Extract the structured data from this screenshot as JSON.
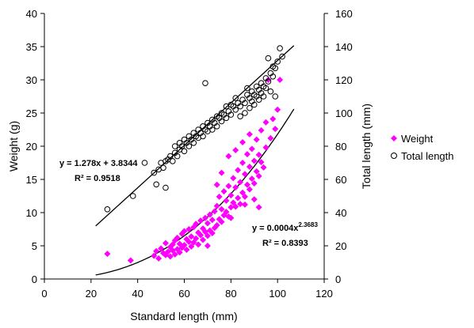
{
  "colors": {
    "weight": "#ff00ff",
    "total_length": "#000000",
    "axis": "#000000",
    "background": "#ffffff"
  },
  "chart_data": {
    "type": "scatter",
    "xlabel": "Standard length (mm)",
    "ylabel": "Weight (g)",
    "y2label": "Total length (mm)",
    "xlim": [
      0,
      120
    ],
    "ylim": [
      0,
      40
    ],
    "y2lim": [
      0,
      160
    ],
    "x_ticks": [
      "0",
      "20",
      "40",
      "60",
      "80",
      "100",
      "120"
    ],
    "y_ticks": [
      "0",
      "5",
      "10",
      "15",
      "20",
      "25",
      "30",
      "35",
      "40"
    ],
    "y2_ticks": [
      "0",
      "20",
      "40",
      "60",
      "80",
      "100",
      "120",
      "140",
      "160"
    ],
    "grid": false,
    "legend_position": "right",
    "series": [
      {
        "name": "Weight",
        "axis": "left",
        "marker": "diamond",
        "color": "#ff00ff",
        "points": [
          [
            27,
            3.8
          ],
          [
            37,
            2.8
          ],
          [
            47,
            3.5
          ],
          [
            48,
            4.2
          ],
          [
            49,
            3.1
          ],
          [
            50,
            4.6
          ],
          [
            51,
            3.9
          ],
          [
            52,
            5.4
          ],
          [
            52,
            3.6
          ],
          [
            53,
            4.1
          ],
          [
            54,
            4.8
          ],
          [
            54,
            3.4
          ],
          [
            55,
            5.2
          ],
          [
            55,
            4.3
          ],
          [
            56,
            3.7
          ],
          [
            56,
            5.8
          ],
          [
            57,
            4.5
          ],
          [
            57,
            6.2
          ],
          [
            58,
            4.0
          ],
          [
            58,
            5.3
          ],
          [
            59,
            6.8
          ],
          [
            59,
            4.7
          ],
          [
            60,
            5.1
          ],
          [
            60,
            7.2
          ],
          [
            61,
            4.4
          ],
          [
            61,
            6.0
          ],
          [
            62,
            5.6
          ],
          [
            62,
            7.5
          ],
          [
            63,
            4.9
          ],
          [
            63,
            6.4
          ],
          [
            64,
            5.5
          ],
          [
            64,
            7.8
          ],
          [
            65,
            6.1
          ],
          [
            65,
            8.3
          ],
          [
            66,
            5.2
          ],
          [
            66,
            7.0
          ],
          [
            67,
            6.6
          ],
          [
            67,
            8.8
          ],
          [
            68,
            5.9
          ],
          [
            68,
            7.6
          ],
          [
            69,
            7.1
          ],
          [
            69,
            9.2
          ],
          [
            70,
            6.5
          ],
          [
            70,
            8.4
          ],
          [
            71,
            7.3
          ],
          [
            71,
            9.7
          ],
          [
            72,
            6.9
          ],
          [
            72,
            8.9
          ],
          [
            73,
            7.7
          ],
          [
            73,
            10.2
          ],
          [
            74,
            8.1
          ],
          [
            74,
            11.0
          ],
          [
            75,
            9.0
          ],
          [
            75,
            12.4
          ],
          [
            76,
            8.6
          ],
          [
            76,
            10.5
          ],
          [
            77,
            9.6
          ],
          [
            77,
            13.2
          ],
          [
            78,
            10.1
          ],
          [
            78,
            11.8
          ],
          [
            79,
            9.4
          ],
          [
            79,
            14.0
          ],
          [
            80,
            10.8
          ],
          [
            80,
            12.6
          ],
          [
            81,
            11.5
          ],
          [
            81,
            15.2
          ],
          [
            82,
            10.9
          ],
          [
            82,
            13.8
          ],
          [
            83,
            12.2
          ],
          [
            83,
            16.4
          ],
          [
            84,
            11.3
          ],
          [
            84,
            14.6
          ],
          [
            85,
            13.0
          ],
          [
            85,
            17.5
          ],
          [
            86,
            12.4
          ],
          [
            86,
            15.8
          ],
          [
            87,
            14.2
          ],
          [
            87,
            18.8
          ],
          [
            88,
            13.5
          ],
          [
            88,
            16.9
          ],
          [
            89,
            15.1
          ],
          [
            89,
            19.6
          ],
          [
            90,
            14.4
          ],
          [
            90,
            17.8
          ],
          [
            91,
            16.2
          ],
          [
            91,
            21.0
          ],
          [
            92,
            15.5
          ],
          [
            92,
            18.7
          ],
          [
            93,
            17.6
          ],
          [
            93,
            22.4
          ],
          [
            94,
            16.8
          ],
          [
            95,
            19.8
          ],
          [
            95,
            23.6
          ],
          [
            96,
            30.0
          ],
          [
            97,
            21.2
          ],
          [
            98,
            24.1
          ],
          [
            99,
            22.6
          ],
          [
            100,
            25.5
          ],
          [
            101,
            30.0
          ],
          [
            79,
            18.5
          ],
          [
            82,
            19.4
          ],
          [
            76,
            16.0
          ],
          [
            74,
            14.2
          ],
          [
            85,
            20.6
          ],
          [
            88,
            21.8
          ],
          [
            90,
            12.0
          ],
          [
            92,
            10.8
          ],
          [
            86,
            11.2
          ],
          [
            80,
            9.2
          ],
          [
            70,
            5.0
          ]
        ]
      },
      {
        "name": "Total length",
        "axis": "right",
        "marker": "circle",
        "color": "#000000",
        "points": [
          [
            27,
            42
          ],
          [
            38,
            50
          ],
          [
            43,
            70
          ],
          [
            47,
            64
          ],
          [
            48,
            57
          ],
          [
            49,
            66
          ],
          [
            50,
            70
          ],
          [
            51,
            67
          ],
          [
            52,
            55
          ],
          [
            52,
            71
          ],
          [
            53,
            72
          ],
          [
            54,
            74
          ],
          [
            55,
            71
          ],
          [
            56,
            76
          ],
          [
            57,
            74
          ],
          [
            58,
            78
          ],
          [
            59,
            80
          ],
          [
            60,
            77
          ],
          [
            61,
            82
          ],
          [
            62,
            80
          ],
          [
            63,
            84
          ],
          [
            64,
            82
          ],
          [
            65,
            86
          ],
          [
            66,
            85
          ],
          [
            67,
            88
          ],
          [
            68,
            86
          ],
          [
            69,
            90
          ],
          [
            69,
            118
          ],
          [
            70,
            89
          ],
          [
            71,
            92
          ],
          [
            72,
            90
          ],
          [
            73,
            94
          ],
          [
            74,
            92
          ],
          [
            75,
            97
          ],
          [
            76,
            95
          ],
          [
            77,
            99
          ],
          [
            78,
            97
          ],
          [
            79,
            101
          ],
          [
            80,
            99
          ],
          [
            81,
            104
          ],
          [
            82,
            102
          ],
          [
            83,
            106
          ],
          [
            84,
            104
          ],
          [
            85,
            108
          ],
          [
            86,
            106
          ],
          [
            87,
            111
          ],
          [
            88,
            109
          ],
          [
            89,
            113
          ],
          [
            90,
            111
          ],
          [
            91,
            116
          ],
          [
            92,
            114
          ],
          [
            93,
            118
          ],
          [
            94,
            116
          ],
          [
            95,
            121
          ],
          [
            96,
            119
          ],
          [
            97,
            124
          ],
          [
            98,
            122
          ],
          [
            99,
            127
          ],
          [
            100,
            131
          ],
          [
            101,
            139
          ],
          [
            102,
            134
          ],
          [
            96,
            133
          ],
          [
            98,
            128
          ],
          [
            87,
            115
          ],
          [
            89,
            107
          ],
          [
            91,
            110
          ],
          [
            93,
            112
          ],
          [
            95,
            115
          ],
          [
            97,
            113
          ],
          [
            99,
            110
          ],
          [
            84,
            98
          ],
          [
            86,
            100
          ],
          [
            88,
            103
          ],
          [
            90,
            105
          ],
          [
            92,
            108
          ],
          [
            94,
            110
          ],
          [
            82,
            109
          ],
          [
            80,
            105
          ],
          [
            78,
            104
          ],
          [
            76,
            100
          ],
          [
            74,
            98
          ],
          [
            72,
            96
          ],
          [
            70,
            94
          ],
          [
            68,
            92
          ],
          [
            66,
            90
          ],
          [
            64,
            88
          ],
          [
            62,
            86
          ],
          [
            60,
            84
          ],
          [
            58,
            82
          ],
          [
            56,
            80
          ]
        ]
      }
    ],
    "trendlines": [
      {
        "series": "Total length",
        "type": "linear",
        "slope": 1.278,
        "intercept": 3.8344,
        "x_range": [
          22,
          107
        ],
        "equation": "y = 1.278x + 3.8344",
        "r2_text": "R² = 0.9518"
      },
      {
        "series": "Weight",
        "type": "power",
        "coefficient": 0.0004,
        "exponent": 2.3683,
        "x_range": [
          22,
          107
        ],
        "equation_prefix": "y = 0.0004x",
        "equation_exponent": "2.3683",
        "r2_text": "R² = 0.8393"
      }
    ]
  }
}
